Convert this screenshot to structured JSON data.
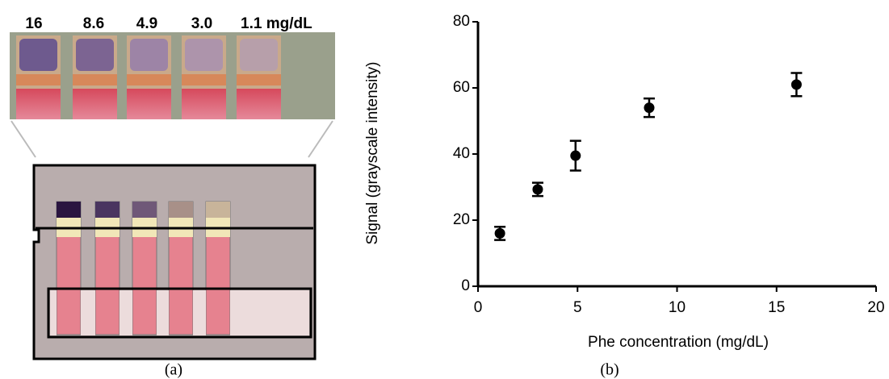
{
  "panel_a": {
    "labels": [
      "16",
      "8.6",
      "4.9",
      "3.0",
      "1.1 mg/dL"
    ],
    "caption": "(a)"
  },
  "chart_data": {
    "type": "scatter",
    "caption": "(b)",
    "x_label": "Phe concentration (mg/dL)",
    "y_label": "Signal (grayscale intensity)",
    "x": [
      1.1,
      3.0,
      4.9,
      8.6,
      16
    ],
    "values": [
      16,
      29.3,
      39.5,
      54,
      61
    ],
    "errors": [
      2,
      2,
      4.5,
      2.8,
      3.5
    ],
    "color": "#000000",
    "xlim": [
      0,
      20
    ],
    "xticks": [
      0,
      5,
      10,
      15,
      20
    ],
    "ylim": [
      0,
      80
    ],
    "yticks": [
      0,
      20,
      40,
      60,
      80
    ]
  }
}
